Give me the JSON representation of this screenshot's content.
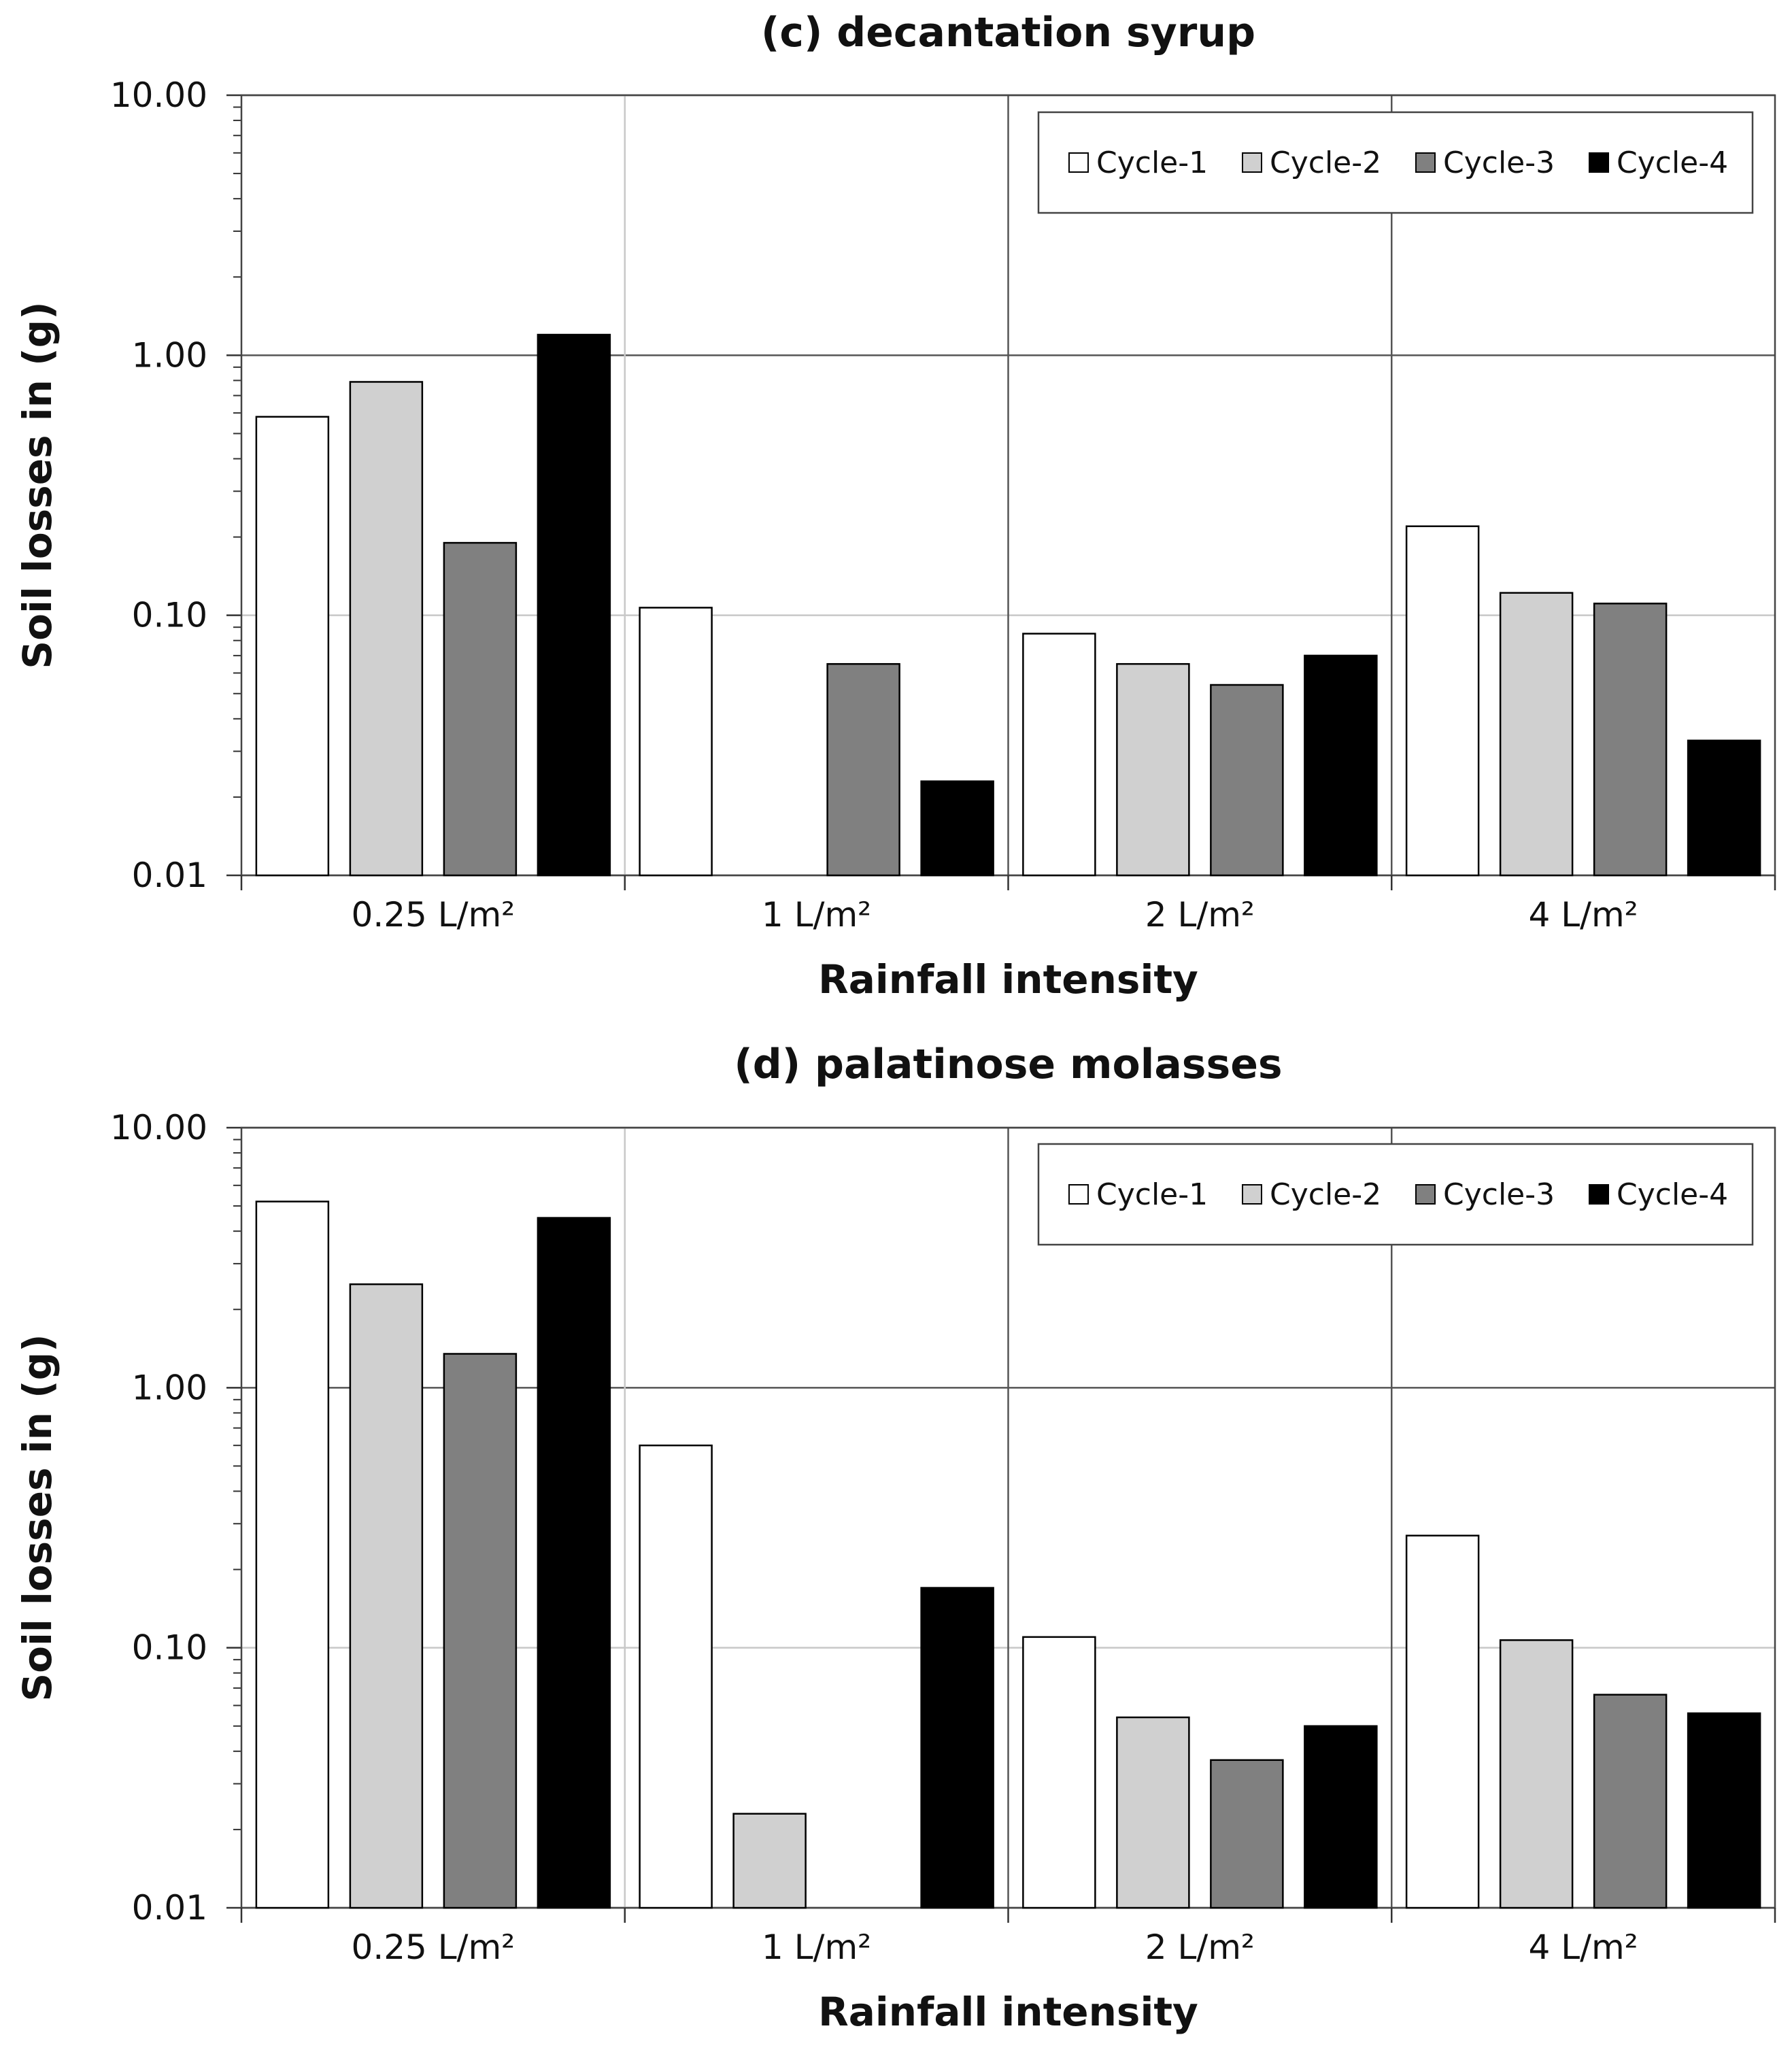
{
  "chart_data": [
    {
      "type": "bar",
      "title": "(c) decantation syrup",
      "xlabel": "Rainfall intensity",
      "ylabel": "Soil losses in (g)",
      "yscale": "log",
      "ylim": [
        0.01,
        10
      ],
      "yticks": [
        "10.00",
        "1.00",
        "0.10",
        "0.01"
      ],
      "categories": [
        "0.25 L/m²",
        "1 L/m²",
        "2 L/m²",
        "4 L/m²"
      ],
      "legend_position": "top-right",
      "series": [
        {
          "name": "Cycle-1",
          "values": [
            0.58,
            0.107,
            0.085,
            0.22
          ]
        },
        {
          "name": "Cycle-2",
          "values": [
            0.79,
            null,
            0.065,
            0.122
          ]
        },
        {
          "name": "Cycle-3",
          "values": [
            0.19,
            0.065,
            0.054,
            0.111
          ]
        },
        {
          "name": "Cycle-4",
          "values": [
            1.2,
            0.023,
            0.07,
            0.033
          ]
        }
      ]
    },
    {
      "type": "bar",
      "title": "(d) palatinose molasses",
      "xlabel": "Rainfall intensity",
      "ylabel": "Soil losses in (g)",
      "yscale": "log",
      "ylim": [
        0.01,
        10
      ],
      "yticks": [
        "10.00",
        "1.00",
        "0.10",
        "0.01"
      ],
      "categories": [
        "0.25 L/m²",
        "1 L/m²",
        "2 L/m²",
        "4 L/m²"
      ],
      "legend_position": "top-right",
      "series": [
        {
          "name": "Cycle-1",
          "values": [
            5.2,
            0.6,
            0.11,
            0.27
          ]
        },
        {
          "name": "Cycle-2",
          "values": [
            2.5,
            0.023,
            0.054,
            0.107
          ]
        },
        {
          "name": "Cycle-3",
          "values": [
            1.35,
            null,
            0.037,
            0.066
          ]
        },
        {
          "name": "Cycle-4",
          "values": [
            4.5,
            0.17,
            0.05,
            0.056
          ]
        }
      ]
    }
  ],
  "colors": {
    "Cycle-1": "#ffffff",
    "Cycle-2": "#d0d0d0",
    "Cycle-3": "#808080",
    "Cycle-4": "#000000",
    "major_grid": "#555555",
    "minor_grid": "#c8c8c8"
  }
}
